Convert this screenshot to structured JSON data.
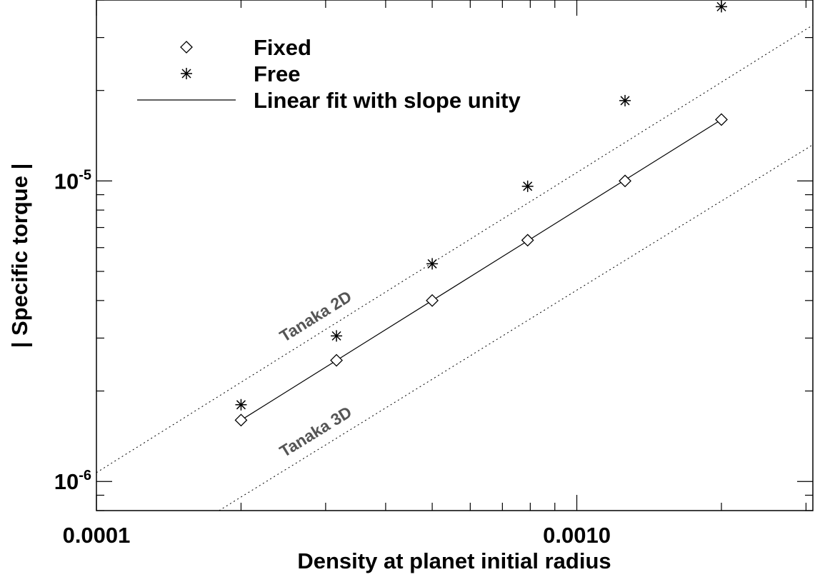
{
  "chart_data": {
    "type": "scatter",
    "title": "",
    "xlabel": "Density at planet initial radius",
    "ylabel": "| Specific torque |",
    "x_scale": "log",
    "y_scale": "log",
    "xlim": [
      0.0001,
      0.0031
    ],
    "ylim": [
      8e-07,
      4e-05
    ],
    "x_ticks": [
      {
        "value": 0.0001,
        "label": "0.0001"
      },
      {
        "value": 0.001,
        "label": "0.0010"
      }
    ],
    "y_ticks": [
      {
        "value": 1e-06,
        "base": "10",
        "exp": "-6"
      },
      {
        "value": 1e-05,
        "base": "10",
        "exp": "-5"
      }
    ],
    "grid": false,
    "legend_position": "top-left",
    "series": [
      {
        "name": "Fixed",
        "marker": "diamond",
        "line": "solid",
        "x": [
          0.0002,
          0.000316,
          0.0005,
          0.00079,
          0.00126,
          0.002
        ],
        "y": [
          1.6e-06,
          2.53e-06,
          4e-06,
          6.35e-06,
          1e-05,
          1.6e-05
        ]
      },
      {
        "name": "Free",
        "marker": "asterisk",
        "line": "none",
        "x": [
          0.0002,
          0.000316,
          0.0005,
          0.00079,
          0.00126,
          0.002
        ],
        "y": [
          1.8e-06,
          3.05e-06,
          5.3e-06,
          9.6e-06,
          1.85e-05,
          3.8e-05
        ]
      }
    ],
    "legend_entries": [
      {
        "label": "Fixed",
        "symbol": "diamond"
      },
      {
        "label": "Free",
        "symbol": "asterisk"
      },
      {
        "label": "Linear fit with slope unity",
        "symbol": "line"
      }
    ],
    "reference_lines": [
      {
        "label": "Tanaka 2D",
        "style": "dotted",
        "x": [
          0.0001,
          0.0031
        ],
        "y": [
          1.07e-06,
          3.3e-05
        ]
      },
      {
        "label": "Tanaka 3D",
        "style": "dotted",
        "x": [
          0.00018,
          0.0031
        ],
        "y": [
          8e-07,
          1.32e-05
        ]
      }
    ]
  }
}
